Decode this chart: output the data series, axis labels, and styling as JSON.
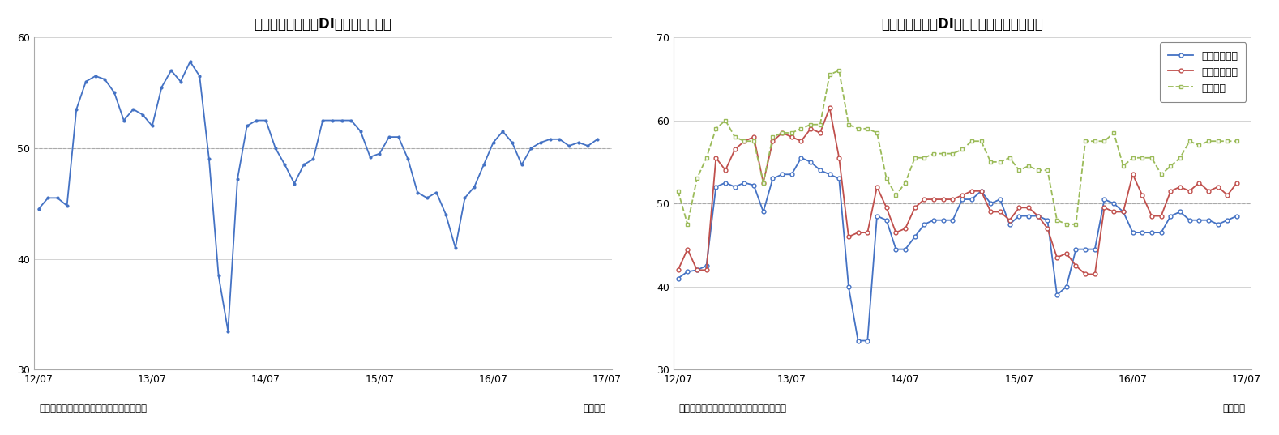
{
  "title1": "景気の先行き判断DI（季節調整値）",
  "title2": "景気の現状判断DI（分野別、季節調整値）",
  "xlabel_note": "（資料）内閣府「景気ウォッチャー調査」",
  "xlabel_unit": "（月次）",
  "ylim1": [
    30,
    60
  ],
  "ylim2": [
    30,
    70
  ],
  "yticks1": [
    30,
    40,
    50,
    60
  ],
  "yticks2": [
    30,
    40,
    50,
    60,
    70
  ],
  "hline": 50,
  "line_color1": "#4472C4",
  "line_color_kakei": "#4472C4",
  "line_color_kigyou": "#C0504D",
  "line_color_koyou": "#9BBB59",
  "legend_labels": [
    "家計動向関連",
    "企業動向関連",
    "雇用関連"
  ],
  "x_tick_labels": [
    "12/07",
    "13/07",
    "14/07",
    "15/07",
    "16/07",
    "17/07"
  ],
  "chart1_data": [
    44.5,
    45.5,
    45.5,
    44.8,
    53.5,
    56.0,
    56.5,
    56.2,
    55.0,
    52.5,
    53.5,
    53.0,
    52.0,
    55.5,
    57.0,
    56.0,
    57.8,
    56.5,
    49.0,
    38.5,
    33.5,
    47.2,
    52.0,
    52.5,
    52.5,
    50.0,
    48.5,
    46.8,
    48.5,
    49.0,
    52.5,
    52.5,
    52.5,
    52.5,
    51.5,
    49.2,
    49.5,
    51.0,
    51.0,
    49.0,
    46.0,
    45.5,
    46.0,
    44.0,
    41.0,
    45.5,
    46.5,
    48.5,
    50.5,
    51.5,
    50.5,
    48.5,
    50.0,
    50.5,
    50.8,
    50.8,
    50.2,
    50.5,
    50.2,
    50.8
  ],
  "chart2_kakei": [
    41.0,
    41.8,
    42.0,
    42.5,
    52.0,
    52.5,
    52.0,
    52.5,
    52.2,
    49.0,
    53.0,
    53.5,
    53.5,
    55.5,
    55.0,
    54.0,
    53.5,
    53.0,
    40.0,
    33.5,
    33.5,
    48.5,
    48.0,
    44.5,
    44.5,
    46.0,
    47.5,
    48.0,
    48.0,
    48.0,
    50.5,
    50.5,
    51.5,
    50.0,
    50.5,
    47.5,
    48.5,
    48.5,
    48.5,
    48.0,
    39.0,
    40.0,
    44.5,
    44.5,
    44.5,
    50.5,
    50.0,
    49.0,
    46.5,
    46.5,
    46.5,
    46.5,
    48.5,
    49.0,
    48.0,
    48.0,
    48.0,
    47.5,
    48.0,
    48.5
  ],
  "chart2_kigyou": [
    42.0,
    44.5,
    42.0,
    42.0,
    55.5,
    54.0,
    56.5,
    57.5,
    58.0,
    52.5,
    57.5,
    58.5,
    58.0,
    57.5,
    59.0,
    58.5,
    61.5,
    55.5,
    46.0,
    46.5,
    46.5,
    52.0,
    49.5,
    46.5,
    47.0,
    49.5,
    50.5,
    50.5,
    50.5,
    50.5,
    51.0,
    51.5,
    51.5,
    49.0,
    49.0,
    48.0,
    49.5,
    49.5,
    48.5,
    47.0,
    43.5,
    44.0,
    42.5,
    41.5,
    41.5,
    49.5,
    49.0,
    49.0,
    53.5,
    51.0,
    48.5,
    48.5,
    51.5,
    52.0,
    51.5,
    52.5,
    51.5,
    52.0,
    51.0,
    52.5
  ],
  "chart2_koyou": [
    51.5,
    47.5,
    53.0,
    55.5,
    59.0,
    60.0,
    58.0,
    57.5,
    57.5,
    52.5,
    58.0,
    58.5,
    58.5,
    59.0,
    59.5,
    59.5,
    65.5,
    66.0,
    59.5,
    59.0,
    59.0,
    58.5,
    53.0,
    51.0,
    52.5,
    55.5,
    55.5,
    56.0,
    56.0,
    56.0,
    56.5,
    57.5,
    57.5,
    55.0,
    55.0,
    55.5,
    54.0,
    54.5,
    54.0,
    54.0,
    48.0,
    47.5,
    47.5,
    57.5,
    57.5,
    57.5,
    58.5,
    54.5,
    55.5,
    55.5,
    55.5,
    53.5,
    54.5,
    55.5,
    57.5,
    57.0,
    57.5,
    57.5,
    57.5,
    57.5
  ]
}
